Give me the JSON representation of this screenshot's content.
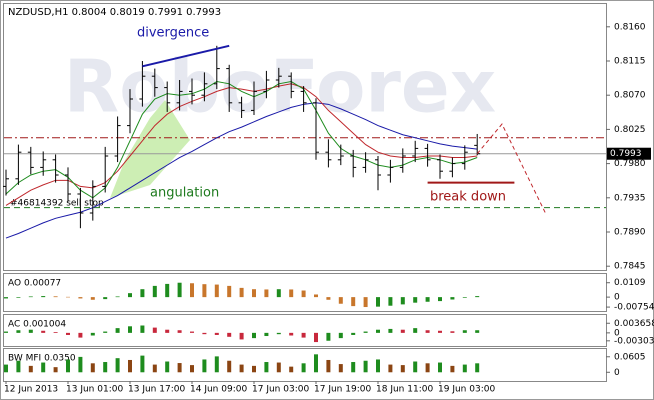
{
  "chart_data": [
    {
      "type": "ohlc",
      "title": "NZDUSD,H1  0.8004 0.8019 0.7991 0.7993",
      "watermark": "RoboForex",
      "categories": [
        "12 Jun 2013",
        null,
        null,
        null,
        null,
        "13 Jun 01:00",
        null,
        null,
        null,
        null,
        "13 Jun 17:00",
        null,
        null,
        null,
        null,
        "14 Jun 09:00",
        null,
        null,
        null,
        null,
        "17 Jun 03:00",
        null,
        null,
        null,
        null,
        "17 Jun 19:00",
        null,
        null,
        null,
        null,
        "18 Jun 11:00",
        null,
        null,
        null,
        null,
        "19 Jun 03:00",
        null,
        null,
        null
      ],
      "open": [
        0.795,
        0.796,
        0.7995,
        0.7975,
        0.7985,
        0.7965,
        0.794,
        0.7915,
        0.795,
        0.799,
        0.803,
        0.8065,
        0.8095,
        0.808,
        0.806,
        0.8075,
        0.807,
        0.8085,
        0.8105,
        0.806,
        0.805,
        0.8075,
        0.809,
        0.8095,
        0.8075,
        0.806,
        0.7995,
        0.7985,
        0.799,
        0.7975,
        0.7985,
        0.7965,
        0.7975,
        0.799,
        0.8,
        0.7985,
        0.797,
        0.798,
        0.8004
      ],
      "high": [
        0.7972,
        0.8005,
        0.8002,
        0.7996,
        0.7992,
        0.7975,
        0.7948,
        0.7958,
        0.8002,
        0.8042,
        0.8078,
        0.8115,
        0.8105,
        0.8088,
        0.809,
        0.8092,
        0.81,
        0.8135,
        0.811,
        0.8068,
        0.8088,
        0.8102,
        0.8106,
        0.81,
        0.8082,
        0.8066,
        0.8012,
        0.8005,
        0.7998,
        0.7995,
        0.799,
        0.7985,
        0.8,
        0.801,
        0.8006,
        0.7992,
        0.7988,
        0.8004,
        0.8019
      ],
      "low": [
        0.7938,
        0.7952,
        0.7966,
        0.7964,
        0.7955,
        0.793,
        0.7895,
        0.7905,
        0.7942,
        0.7982,
        0.802,
        0.8055,
        0.8068,
        0.8048,
        0.805,
        0.8058,
        0.8062,
        0.8078,
        0.8048,
        0.804,
        0.8044,
        0.8066,
        0.808,
        0.8066,
        0.8048,
        0.7985,
        0.7975,
        0.7978,
        0.7962,
        0.7968,
        0.7945,
        0.7955,
        0.7968,
        0.7982,
        0.7976,
        0.796,
        0.7962,
        0.7972,
        0.7991
      ],
      "close": [
        0.796,
        0.7995,
        0.7975,
        0.7985,
        0.7965,
        0.794,
        0.7915,
        0.795,
        0.799,
        0.803,
        0.8065,
        0.8095,
        0.808,
        0.806,
        0.8075,
        0.807,
        0.8085,
        0.8105,
        0.806,
        0.805,
        0.8075,
        0.809,
        0.8095,
        0.8075,
        0.806,
        0.7995,
        0.7985,
        0.799,
        0.7975,
        0.7985,
        0.7965,
        0.7975,
        0.799,
        0.8,
        0.7985,
        0.797,
        0.798,
        0.7995,
        0.7993
      ],
      "bar_color": "#000000",
      "lines": [
        {
          "color": "#1a1aa8",
          "values": [
            0.7882,
            0.7888,
            0.7895,
            0.7902,
            0.7908,
            0.7912,
            0.7916,
            0.7922,
            0.793,
            0.7938,
            0.7948,
            0.7958,
            0.7968,
            0.7978,
            0.7988,
            0.7996,
            0.8005,
            0.8014,
            0.8022,
            0.8028,
            0.8035,
            0.8042,
            0.8048,
            0.8054,
            0.8058,
            0.806,
            0.8058,
            0.8052,
            0.8045,
            0.8038,
            0.803,
            0.8024,
            0.8018,
            0.8014,
            0.801,
            0.8006,
            0.8003,
            0.8001,
            0.7999
          ]
        },
        {
          "color": "#c0282d",
          "values": [
            0.7925,
            0.7935,
            0.7945,
            0.7952,
            0.7958,
            0.7958,
            0.795,
            0.7948,
            0.7955,
            0.797,
            0.799,
            0.801,
            0.803,
            0.8045,
            0.8055,
            0.8062,
            0.8068,
            0.8075,
            0.808,
            0.8078,
            0.8075,
            0.8078,
            0.8082,
            0.8085,
            0.808,
            0.8068,
            0.805,
            0.8035,
            0.802,
            0.8005,
            0.7995,
            0.799,
            0.7988,
            0.7988,
            0.799,
            0.799,
            0.7988,
            0.7988,
            0.799
          ]
        },
        {
          "color": "#1e8c1e",
          "values": [
            0.794,
            0.7955,
            0.7965,
            0.797,
            0.7972,
            0.7962,
            0.7945,
            0.7935,
            0.7948,
            0.7975,
            0.801,
            0.8045,
            0.8065,
            0.8072,
            0.807,
            0.8072,
            0.8078,
            0.8088,
            0.8085,
            0.8075,
            0.8068,
            0.8075,
            0.8085,
            0.8088,
            0.8078,
            0.805,
            0.802,
            0.8,
            0.799,
            0.7985,
            0.7978,
            0.7975,
            0.7978,
            0.7985,
            0.7988,
            0.7985,
            0.798,
            0.7982,
            0.7988
          ]
        }
      ],
      "forecast": {
        "color": "#c0282d",
        "x": [
          38,
          40,
          43.5
        ],
        "values": [
          0.7993,
          0.8032,
          0.7915
        ]
      },
      "levels": [
        {
          "value": 0.8014,
          "color": "#a01818"
        },
        {
          "value": 0.7922,
          "color": "#1e7a1e"
        }
      ],
      "last_price": 0.7993,
      "annotations": [
        {
          "text": "divergence",
          "color": "#1a1aa8",
          "x": [
            11,
            18
          ],
          "values": [
            0.8108,
            0.8135
          ]
        },
        {
          "text": "break down",
          "color": "#a01818",
          "x": [
            34,
            41
          ],
          "values": [
            0.7955,
            0.7955
          ]
        },
        {
          "text": "angulation",
          "color": "#1e7a1e"
        },
        {
          "text": "#46814392 sell stop",
          "color": "#000000"
        }
      ],
      "ylim": [
        0.784,
        0.819
      ],
      "yticks": [
        {
          "value": 0.816,
          "label": "0.8160"
        },
        0.8115,
        {
          "value": 0.807,
          "label": "0.8070"
        },
        0.8025,
        {
          "value": 0.798,
          "label": "0.7980"
        },
        0.7935,
        {
          "value": 0.789,
          "label": "0.7890"
        },
        0.7845
      ]
    },
    {
      "type": "histogram",
      "title": "AO 0.00077",
      "colors": {
        "up": "#1e8c1e",
        "down": "#c8762b"
      },
      "values": [
        -0.001,
        -0.0005,
        0.0005,
        0.0008,
        0.0006,
        0.0002,
        -0.001,
        -0.002,
        -0.0015,
        0.0005,
        0.003,
        0.006,
        0.0085,
        0.01,
        0.0109,
        0.0105,
        0.0098,
        0.0095,
        0.0085,
        0.007,
        0.006,
        0.0058,
        0.006,
        0.0058,
        0.005,
        0.002,
        -0.002,
        -0.005,
        -0.0068,
        -0.0075,
        -0.0072,
        -0.0065,
        -0.0055,
        -0.0042,
        -0.0035,
        -0.003,
        -0.0018,
        -0.0005,
        0.00077
      ],
      "ylim": [
        -0.0105,
        0.0175
      ],
      "yticks": [
        0.0109,
        0,
        -0.00754
      ]
    },
    {
      "type": "histogram",
      "title": "AC 0.001004",
      "colors": {
        "up": "#1e8c1e",
        "down": "#c8283c"
      },
      "values": [
        0.0005,
        0.001,
        0.0012,
        0.0008,
        0.0003,
        -0.0008,
        -0.0018,
        -0.001,
        0.0005,
        0.0018,
        0.0025,
        0.0028,
        0.002,
        0.0012,
        0.001,
        0.0005,
        -0.0005,
        -0.0008,
        -0.0015,
        -0.0025,
        -0.002,
        -0.0012,
        -0.0005,
        -0.001,
        -0.0018,
        -0.0035,
        -0.003,
        -0.002,
        -0.0008,
        0.0005,
        0.0012,
        0.0015,
        0.0012,
        0.0018,
        0.001,
        0.0008,
        0.0006,
        0.001,
        0.001004
      ],
      "ylim": [
        -0.005,
        0.0068
      ],
      "yticks": [
        0.003658,
        0,
        -0.00303
      ]
    },
    {
      "type": "histogram",
      "title": "BW MFI 0.0350",
      "colors": {
        "up": "#1e8c1e",
        "down": "#8b4513"
      },
      "values": [
        0.03,
        0.045,
        0.025,
        0.038,
        0.02,
        0.05,
        0.06,
        0.035,
        0.04,
        0.055,
        0.048,
        0.065,
        0.03,
        0.042,
        0.036,
        0.028,
        0.05,
        0.062,
        0.045,
        0.03,
        0.025,
        0.04,
        0.038,
        0.022,
        0.035,
        0.07,
        0.048,
        0.032,
        0.04,
        0.045,
        0.05,
        0.03,
        0.028,
        0.042,
        0.035,
        0.038,
        0.025,
        0.03,
        0.035
      ],
      "ylim": [
        -0.034,
        0.0908
      ],
      "yticks": [
        0.0605,
        0
      ]
    }
  ]
}
